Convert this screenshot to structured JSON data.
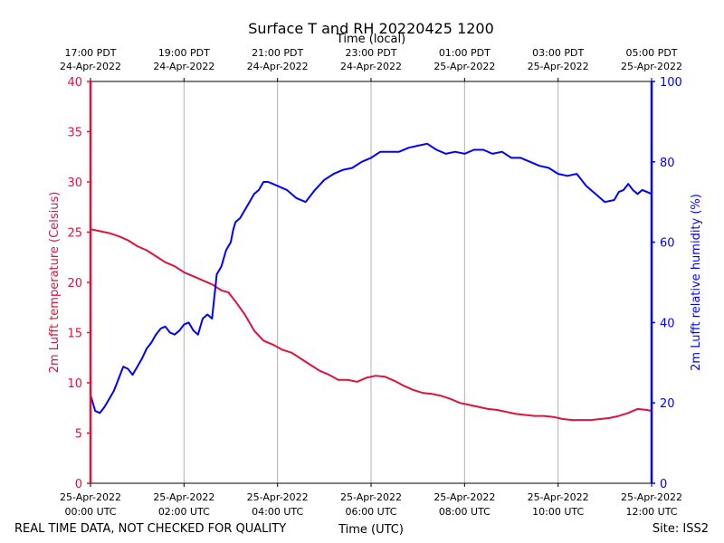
{
  "chart_data": {
    "type": "line",
    "title": "Surface T and RH 20220425 1200",
    "top_axis_label": "Time (local)",
    "xlabel": "Time (UTC)",
    "ylabel_left": "2m Lufft temperature (Celsius)",
    "ylabel_right": "2m Lufft relative humidity (%)",
    "footer_left": "REAL TIME DATA, NOT CHECKED FOR QUALITY",
    "footer_right": "Site: ISS2",
    "colors": {
      "temperature": "#dc143c",
      "humidity": "#0000ff",
      "grid": "#b0b0b0",
      "axis": "#000000"
    },
    "xlim": [
      0,
      12
    ],
    "ylim_left": [
      0,
      40
    ],
    "ylim_right": [
      0,
      100
    ],
    "left_ticks": [
      0,
      5,
      10,
      15,
      20,
      25,
      30,
      35,
      40
    ],
    "right_ticks": [
      0,
      20,
      40,
      60,
      80,
      100
    ],
    "bottom_ticks": [
      {
        "x": 0,
        "line1": "25-Apr-2022",
        "line2": "00:00 UTC"
      },
      {
        "x": 2,
        "line1": "25-Apr-2022",
        "line2": "02:00 UTC"
      },
      {
        "x": 4,
        "line1": "25-Apr-2022",
        "line2": "04:00 UTC"
      },
      {
        "x": 6,
        "line1": "25-Apr-2022",
        "line2": "06:00 UTC"
      },
      {
        "x": 8,
        "line1": "25-Apr-2022",
        "line2": "08:00 UTC"
      },
      {
        "x": 10,
        "line1": "25-Apr-2022",
        "line2": "10:00 UTC"
      },
      {
        "x": 12,
        "line1": "25-Apr-2022",
        "line2": "12:00 UTC"
      }
    ],
    "top_ticks": [
      {
        "x": 0,
        "line1": "17:00 PDT",
        "line2": "24-Apr-2022"
      },
      {
        "x": 2,
        "line1": "19:00 PDT",
        "line2": "24-Apr-2022"
      },
      {
        "x": 4,
        "line1": "21:00 PDT",
        "line2": "24-Apr-2022"
      },
      {
        "x": 6,
        "line1": "23:00 PDT",
        "line2": "24-Apr-2022"
      },
      {
        "x": 8,
        "line1": "01:00 PDT",
        "line2": "25-Apr-2022"
      },
      {
        "x": 10,
        "line1": "03:00 PDT",
        "line2": "25-Apr-2022"
      },
      {
        "x": 12,
        "line1": "05:00 PDT",
        "line2": "25-Apr-2022"
      }
    ],
    "series": [
      {
        "name": "2m Lufft temperature",
        "axis": "left",
        "x": [
          0,
          0.2,
          0.4,
          0.6,
          0.8,
          1.0,
          1.2,
          1.4,
          1.6,
          1.8,
          2.0,
          2.2,
          2.4,
          2.6,
          2.8,
          2.95,
          3.1,
          3.3,
          3.5,
          3.7,
          3.9,
          4.1,
          4.3,
          4.5,
          4.7,
          4.9,
          5.1,
          5.3,
          5.5,
          5.7,
          5.9,
          6.1,
          6.3,
          6.5,
          6.7,
          6.9,
          7.1,
          7.3,
          7.5,
          7.7,
          7.9,
          8.1,
          8.3,
          8.5,
          8.7,
          8.9,
          9.1,
          9.3,
          9.5,
          9.7,
          9.9,
          10.1,
          10.3,
          10.5,
          10.7,
          10.9,
          11.1,
          11.3,
          11.5,
          11.7,
          11.9,
          12.0
        ],
        "values": [
          25.3,
          25.1,
          24.9,
          24.6,
          24.2,
          23.6,
          23.2,
          22.6,
          22.0,
          21.6,
          21.0,
          20.6,
          20.2,
          19.8,
          19.2,
          19.0,
          18.1,
          16.8,
          15.2,
          14.2,
          13.8,
          13.3,
          13.0,
          12.4,
          11.8,
          11.2,
          10.8,
          10.3,
          10.3,
          10.1,
          10.5,
          10.7,
          10.6,
          10.2,
          9.7,
          9.3,
          9.0,
          8.9,
          8.7,
          8.4,
          8.0,
          7.8,
          7.6,
          7.4,
          7.3,
          7.1,
          6.9,
          6.8,
          6.7,
          6.7,
          6.6,
          6.4,
          6.3,
          6.3,
          6.3,
          6.4,
          6.5,
          6.7,
          7.0,
          7.4,
          7.3,
          7.2
        ]
      },
      {
        "name": "2m Lufft relative humidity",
        "axis": "right",
        "x": [
          0,
          0.1,
          0.2,
          0.3,
          0.4,
          0.5,
          0.6,
          0.7,
          0.8,
          0.9,
          1.0,
          1.1,
          1.2,
          1.3,
          1.4,
          1.5,
          1.6,
          1.7,
          1.8,
          1.9,
          2.0,
          2.1,
          2.2,
          2.3,
          2.4,
          2.5,
          2.6,
          2.7,
          2.8,
          2.9,
          3.0,
          3.05,
          3.1,
          3.2,
          3.3,
          3.4,
          3.5,
          3.6,
          3.7,
          3.8,
          3.9,
          4.0,
          4.2,
          4.4,
          4.6,
          4.8,
          5.0,
          5.2,
          5.4,
          5.6,
          5.8,
          6.0,
          6.2,
          6.4,
          6.6,
          6.8,
          7.0,
          7.2,
          7.4,
          7.6,
          7.8,
          8.0,
          8.2,
          8.4,
          8.6,
          8.8,
          9.0,
          9.2,
          9.4,
          9.6,
          9.8,
          10.0,
          10.2,
          10.4,
          10.6,
          10.8,
          11.0,
          11.2,
          11.3,
          11.4,
          11.5,
          11.6,
          11.7,
          11.8,
          11.9,
          12.0
        ],
        "values": [
          22,
          18,
          17.5,
          19,
          21,
          23,
          26,
          29,
          28.5,
          27,
          29,
          31,
          33.5,
          35,
          37,
          38.5,
          39,
          37.5,
          37,
          38,
          39.5,
          40,
          38,
          37,
          41,
          42,
          41,
          52,
          54,
          58,
          60,
          63,
          65,
          66,
          68,
          70,
          72,
          73,
          75,
          75,
          74.5,
          74,
          73,
          71,
          70,
          73,
          75.5,
          77,
          78,
          78.5,
          80,
          81,
          82.5,
          82.5,
          82.5,
          83.5,
          84,
          84.5,
          83,
          82,
          82.5,
          82,
          83,
          83,
          82,
          82.5,
          81,
          81,
          80,
          79,
          78.5,
          77,
          76.5,
          77,
          74,
          72,
          70,
          70.5,
          72.5,
          73,
          74.5,
          73,
          72,
          73,
          72.5,
          72
        ]
      }
    ]
  }
}
